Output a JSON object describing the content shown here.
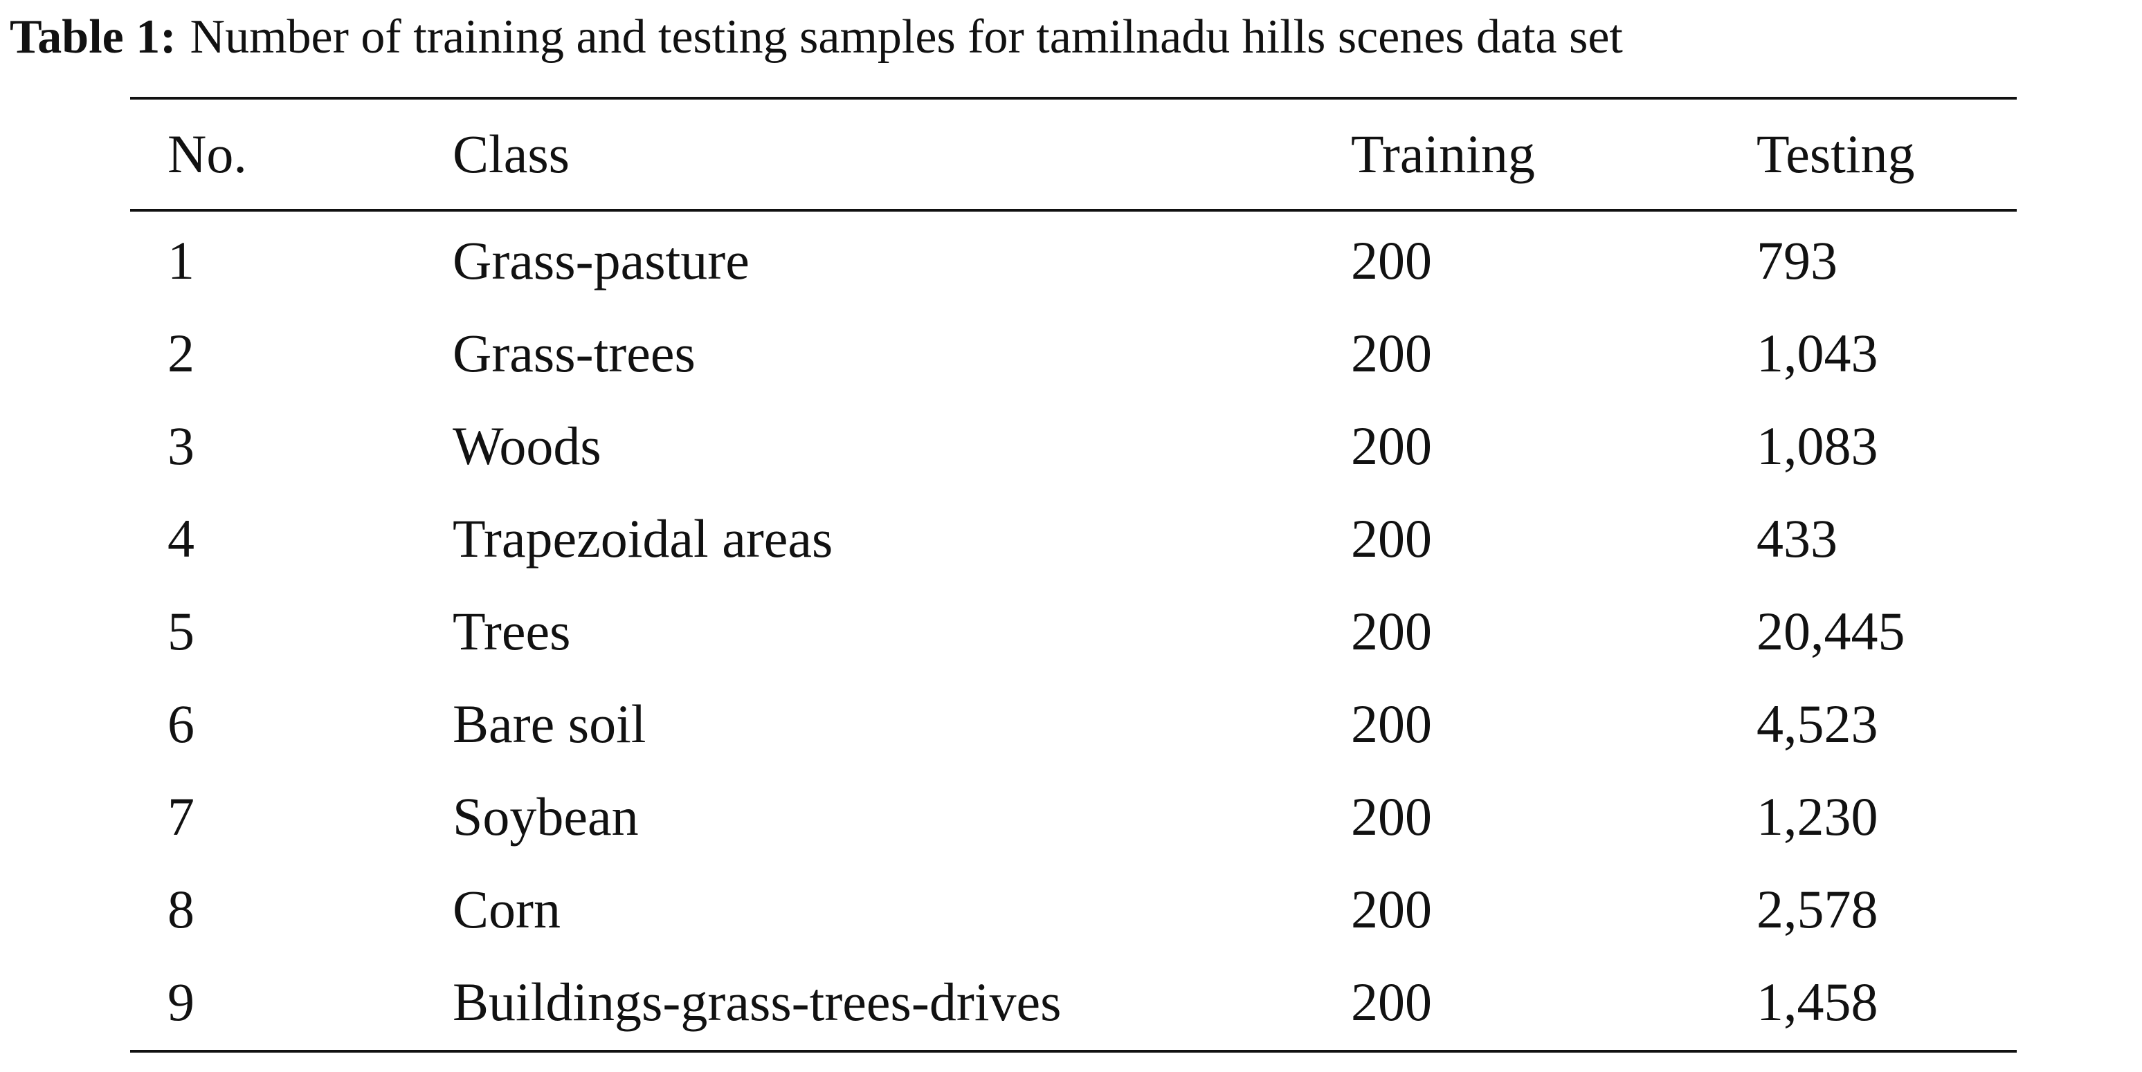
{
  "caption": {
    "label": "Table 1:",
    "text": "Number of training and testing samples for tamilnadu hills scenes data set"
  },
  "table": {
    "headers": [
      "No.",
      "Class",
      "Training",
      "Testing"
    ],
    "rows": [
      [
        "1",
        "Grass-pasture",
        "200",
        "793"
      ],
      [
        "2",
        "Grass-trees",
        "200",
        "1,043"
      ],
      [
        "3",
        "Woods",
        "200",
        "1,083"
      ],
      [
        "4",
        "Trapezoidal areas",
        "200",
        "433"
      ],
      [
        "5",
        "Trees",
        "200",
        "20,445"
      ],
      [
        "6",
        "Bare soil",
        "200",
        "4,523"
      ],
      [
        "7",
        "Soybean",
        "200",
        "1,230"
      ],
      [
        "8",
        "Corn",
        "200",
        "2,578"
      ],
      [
        "9",
        "Buildings-grass-trees-drives",
        "200",
        "1,458"
      ]
    ]
  }
}
